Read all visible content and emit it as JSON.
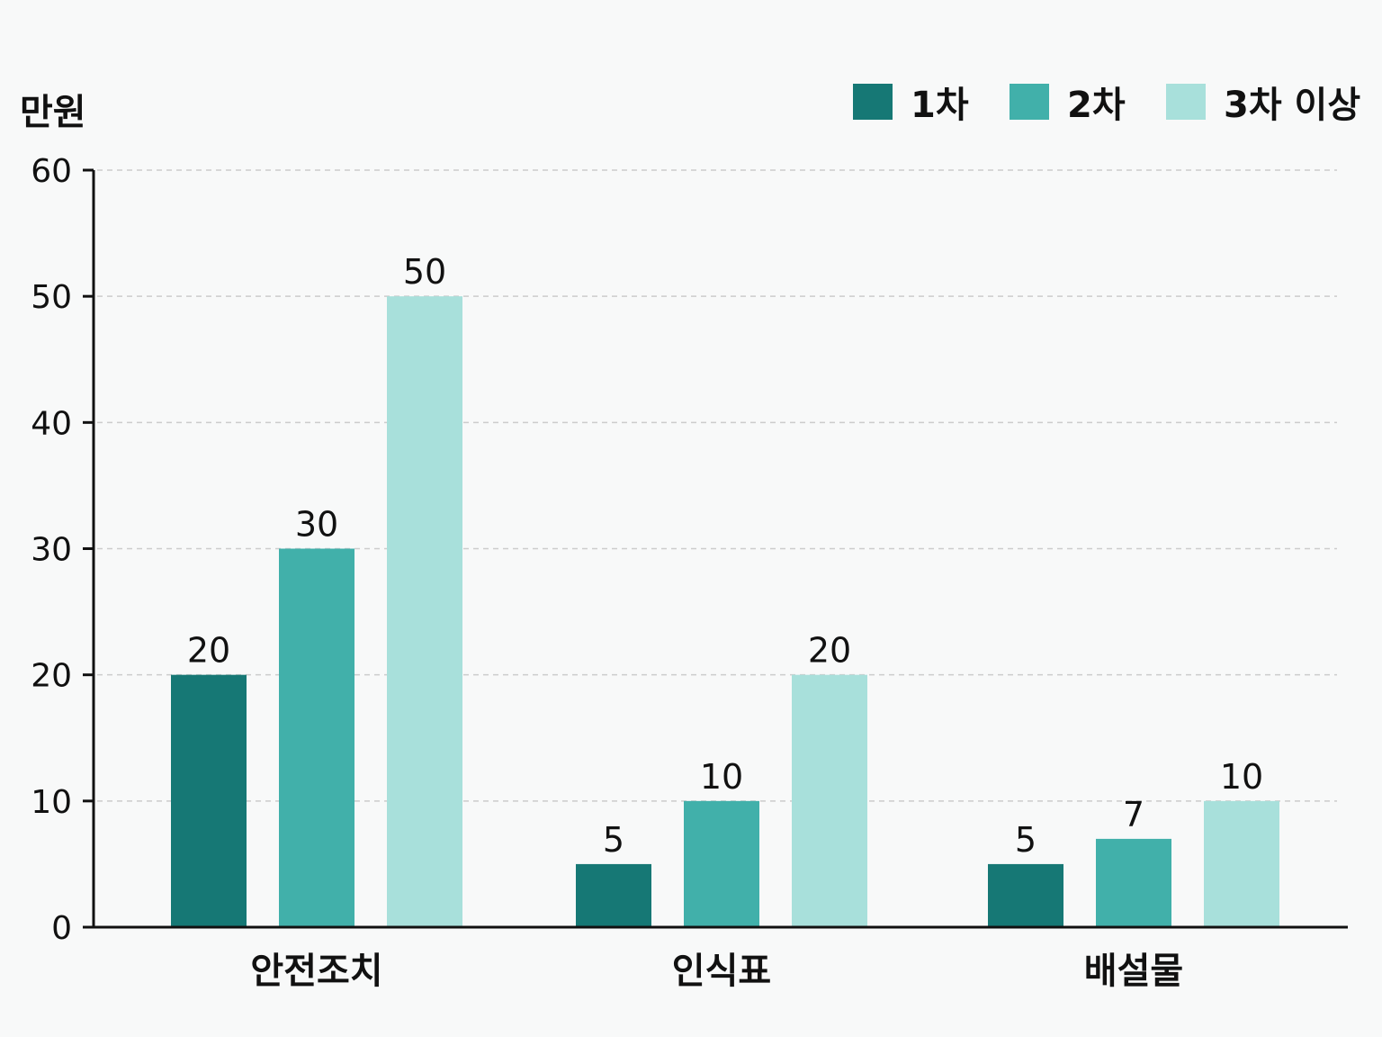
{
  "chart_data": {
    "type": "bar",
    "unit_label": "만원",
    "categories": [
      "안전조치",
      "인식표",
      "배설물"
    ],
    "series": [
      {
        "name": "1차",
        "values": [
          20,
          5,
          5
        ],
        "color": "#167875"
      },
      {
        "name": "2차",
        "values": [
          30,
          10,
          7
        ],
        "color": "#41b0aa"
      },
      {
        "name": "3차 이상",
        "values": [
          50,
          20,
          10
        ],
        "color": "#a8e0db"
      }
    ],
    "ylim": [
      0,
      60
    ],
    "yticks": [
      0,
      10,
      20,
      30,
      40,
      50,
      60
    ],
    "grid": true,
    "legend_position": "top-right"
  }
}
